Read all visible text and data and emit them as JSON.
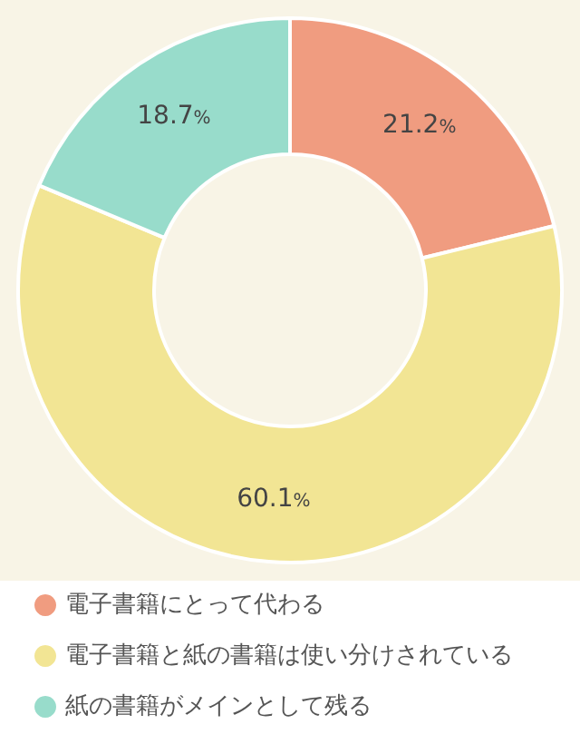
{
  "chart_data": {
    "type": "donut",
    "categories": [
      "電子書籍にとって代わる",
      "電子書籍と紙の書籍は使い分けされている",
      "紙の書籍がメインとして残る"
    ],
    "values": [
      21.2,
      60.1,
      18.7
    ],
    "colors": [
      "#f09c80",
      "#f2e594",
      "#98dccb"
    ],
    "value_labels": [
      "21.2%",
      "60.1%",
      "18.7%"
    ],
    "legend": "bottom left"
  }
}
